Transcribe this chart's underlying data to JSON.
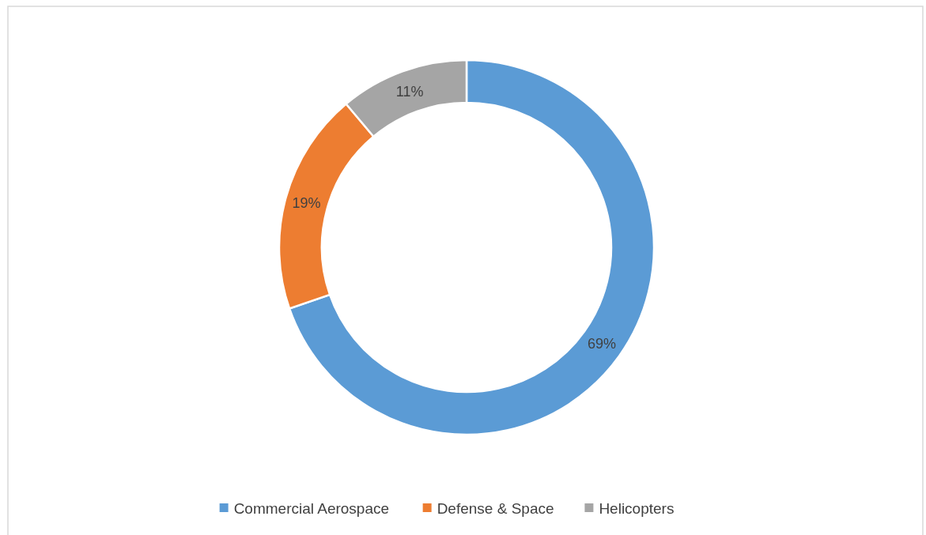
{
  "chart_data": {
    "type": "donut",
    "categories": [
      "Commercial Aerospace",
      "Defense & Space",
      "Helicopters"
    ],
    "values": [
      69,
      19,
      11
    ],
    "colors": [
      "#5b9bd5",
      "#ed7d31",
      "#a5a5a5"
    ],
    "value_labels": [
      "69%",
      "19%",
      "11%"
    ],
    "legend": "bottom"
  }
}
